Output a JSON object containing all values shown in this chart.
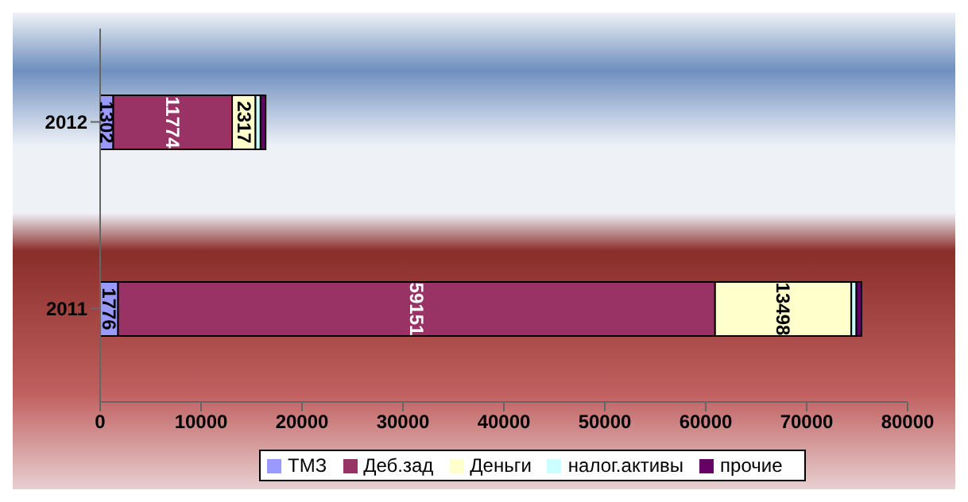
{
  "chart_data": {
    "type": "bar",
    "orientation": "horizontal",
    "stacked": true,
    "categories": [
      "2012",
      "2011"
    ],
    "series": [
      {
        "name": "ТМЗ",
        "color": "#9999ff",
        "values": [
          1302,
          1776
        ],
        "value_labels": [
          "1302",
          "1776"
        ]
      },
      {
        "name": "Деб.зад",
        "color": "#993366",
        "values": [
          11774,
          59151
        ],
        "value_labels": [
          "11774",
          "59151"
        ]
      },
      {
        "name": "Деньги",
        "color": "#ffffcc",
        "values": [
          2317,
          13498
        ],
        "value_labels": [
          "2317",
          "13498"
        ]
      },
      {
        "name": "налог.активы",
        "color": "#ccffff",
        "values": [
          500,
          500
        ],
        "value_labels": [
          null,
          null
        ]
      },
      {
        "name": "прочие",
        "color": "#660066",
        "values": [
          500,
          500
        ],
        "value_labels": [
          null,
          null
        ]
      }
    ],
    "xlim": [
      0,
      80000
    ],
    "xticks": [
      0,
      10000,
      20000,
      30000,
      40000,
      50000,
      60000,
      70000,
      80000
    ],
    "grid": false,
    "legend": "bottom"
  }
}
